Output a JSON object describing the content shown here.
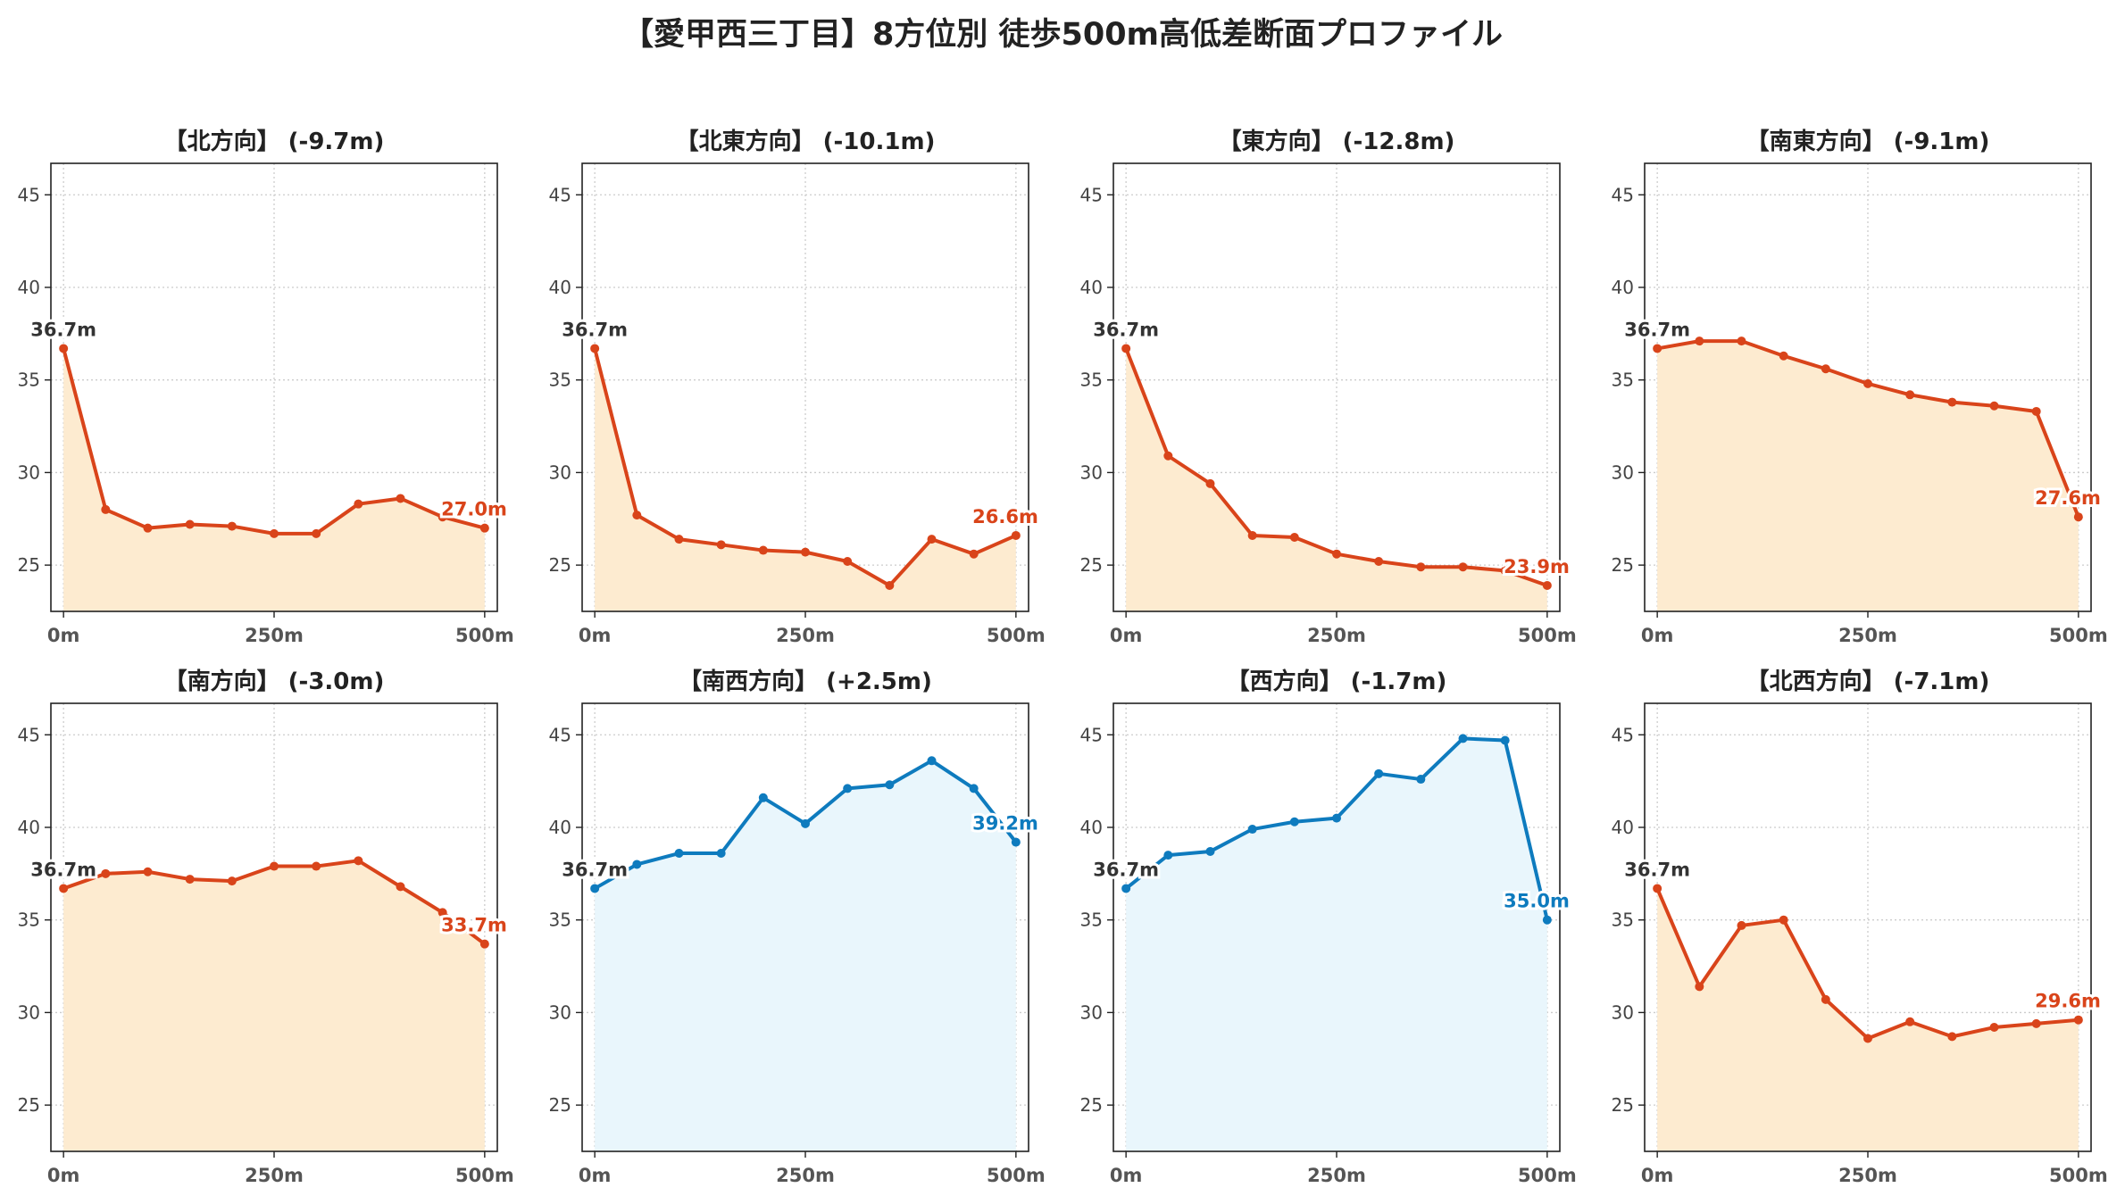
{
  "title": "【愛甲西三丁目】8方位別 徒歩500m高低差断面プロファイル",
  "colors": {
    "down_line": "#D9441A",
    "down_fill": "#FDEBD0",
    "up_line": "#0E7BBE",
    "up_fill": "#E9F6FC",
    "start_label": "#333333",
    "grid": "#CCCCCC"
  },
  "chart_data": [
    {
      "type": "area",
      "title": "【北方向】 (-9.7m)",
      "trend": "down",
      "x": [
        0,
        50,
        100,
        150,
        200,
        250,
        300,
        350,
        400,
        450,
        500
      ],
      "y": [
        36.7,
        28.0,
        27.0,
        27.2,
        27.1,
        26.7,
        26.7,
        28.3,
        28.6,
        27.6,
        27.0
      ],
      "start_label": "36.7m",
      "end_label": "27.0m"
    },
    {
      "type": "area",
      "title": "【北東方向】 (-10.1m)",
      "trend": "down",
      "x": [
        0,
        50,
        100,
        150,
        200,
        250,
        300,
        350,
        400,
        450,
        500
      ],
      "y": [
        36.7,
        27.7,
        26.4,
        26.1,
        25.8,
        25.7,
        25.2,
        23.9,
        26.4,
        25.6,
        26.6
      ],
      "start_label": "36.7m",
      "end_label": "26.6m"
    },
    {
      "type": "area",
      "title": "【東方向】 (-12.8m)",
      "trend": "down",
      "x": [
        0,
        50,
        100,
        150,
        200,
        250,
        300,
        350,
        400,
        450,
        500
      ],
      "y": [
        36.7,
        30.9,
        29.4,
        26.6,
        26.5,
        25.6,
        25.2,
        24.9,
        24.9,
        24.7,
        23.9
      ],
      "start_label": "36.7m",
      "end_label": "23.9m"
    },
    {
      "type": "area",
      "title": "【南東方向】 (-9.1m)",
      "trend": "down",
      "x": [
        0,
        50,
        100,
        150,
        200,
        250,
        300,
        350,
        400,
        450,
        500
      ],
      "y": [
        36.7,
        37.1,
        37.1,
        36.3,
        35.6,
        34.8,
        34.2,
        33.8,
        33.6,
        33.3,
        27.6
      ],
      "start_label": "36.7m",
      "end_label": "27.6m"
    },
    {
      "type": "area",
      "title": "【南方向】 (-3.0m)",
      "trend": "down",
      "x": [
        0,
        50,
        100,
        150,
        200,
        250,
        300,
        350,
        400,
        450,
        500
      ],
      "y": [
        36.7,
        37.5,
        37.6,
        37.2,
        37.1,
        37.9,
        37.9,
        38.2,
        36.8,
        35.4,
        33.7
      ],
      "start_label": "36.7m",
      "end_label": "33.7m"
    },
    {
      "type": "area",
      "title": "【南西方向】 (+2.5m)",
      "trend": "up",
      "x": [
        0,
        50,
        100,
        150,
        200,
        250,
        300,
        350,
        400,
        450,
        500
      ],
      "y": [
        36.7,
        38.0,
        38.6,
        38.6,
        41.6,
        40.2,
        42.1,
        42.3,
        43.6,
        42.1,
        39.2
      ],
      "start_label": "36.7m",
      "end_label": "39.2m"
    },
    {
      "type": "area",
      "title": "【西方向】 (-1.7m)",
      "trend": "up",
      "x": [
        0,
        50,
        100,
        150,
        200,
        250,
        300,
        350,
        400,
        450,
        500
      ],
      "y": [
        36.7,
        38.5,
        38.7,
        39.9,
        40.3,
        40.5,
        42.9,
        42.6,
        44.8,
        44.7,
        35.0
      ],
      "start_label": "36.7m",
      "end_label": "35.0m"
    },
    {
      "type": "area",
      "title": "【北西方向】 (-7.1m)",
      "trend": "down",
      "x": [
        0,
        50,
        100,
        150,
        200,
        250,
        300,
        350,
        400,
        450,
        500
      ],
      "y": [
        36.7,
        31.4,
        34.7,
        35.0,
        30.7,
        28.6,
        29.5,
        28.7,
        29.2,
        29.4,
        29.6
      ],
      "start_label": "36.7m",
      "end_label": "29.6m"
    }
  ],
  "axes": {
    "xlim": [
      -15,
      515
    ],
    "ylim": [
      22.5,
      46.7
    ],
    "yticks": [
      25,
      30,
      35,
      40,
      45
    ],
    "ytick_labels": [
      "25",
      "30",
      "35",
      "40",
      "45"
    ],
    "xticks": [
      0,
      250,
      500
    ],
    "xtick_labels": [
      "0m",
      "250m",
      "500m"
    ],
    "grid": true
  }
}
